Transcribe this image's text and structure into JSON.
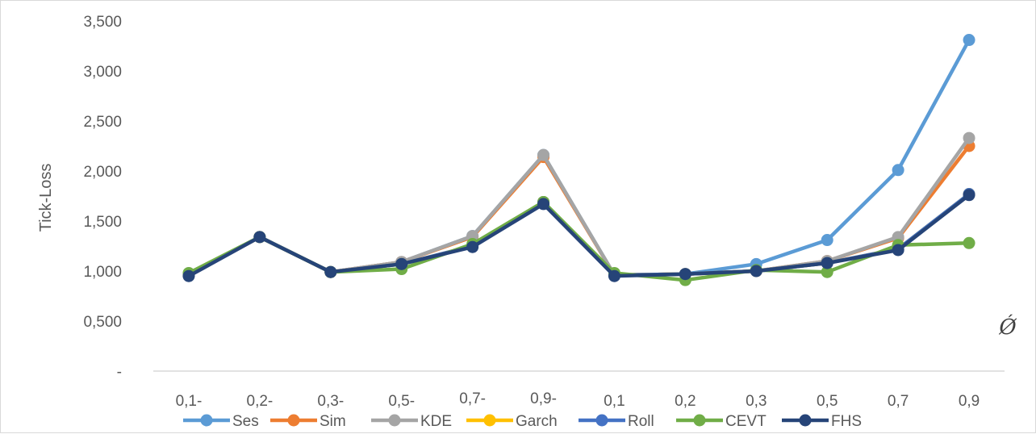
{
  "chart_data": {
    "type": "line",
    "title": "",
    "xlabel": "Ǿ",
    "ylabel": "Tick-Loss",
    "ylim": [
      0,
      3.5
    ],
    "grid": false,
    "legend_position": "bottom",
    "categories": [
      "0,1-",
      "0,2-",
      "0,3-",
      "0,5-",
      "0,7-",
      "0,9-",
      "0,1",
      "0,2",
      "0,3",
      "0,5",
      "0,7",
      "0,9"
    ],
    "y_tick_labels": [
      "-",
      "0,500",
      "1,000",
      "1,500",
      "2,000",
      "2,500",
      "3,000",
      "3,500"
    ],
    "series": [
      {
        "name": "Ses",
        "color": "#5b9bd5",
        "values": [
          0.96,
          1.34,
          0.99,
          1.09,
          1.35,
          2.16,
          0.96,
          0.97,
          1.07,
          1.31,
          2.01,
          3.31
        ]
      },
      {
        "name": "Sim",
        "color": "#ed7d31",
        "values": [
          0.96,
          1.34,
          0.99,
          1.09,
          1.34,
          2.14,
          0.96,
          0.97,
          1.0,
          1.1,
          1.33,
          2.25
        ]
      },
      {
        "name": "KDE",
        "color": "#a5a5a5",
        "values": [
          0.96,
          1.34,
          0.99,
          1.09,
          1.35,
          2.16,
          0.96,
          0.97,
          1.0,
          1.1,
          1.34,
          2.33
        ]
      },
      {
        "name": "Garch",
        "color": "#ffc000",
        "values": [
          0.96,
          1.34,
          0.99,
          1.07,
          1.25,
          1.69,
          0.96,
          0.97,
          1.0,
          1.08,
          1.22,
          1.77
        ]
      },
      {
        "name": "Roll",
        "color": "#4472c4",
        "values": [
          0.96,
          1.34,
          0.99,
          1.07,
          1.25,
          1.69,
          0.96,
          0.97,
          1.0,
          1.08,
          1.22,
          1.77
        ]
      },
      {
        "name": "CEVT",
        "color": "#70ad47",
        "values": [
          0.98,
          1.34,
          0.99,
          1.02,
          1.27,
          1.69,
          0.98,
          0.91,
          1.01,
          0.99,
          1.26,
          1.28
        ]
      },
      {
        "name": "FHS",
        "color": "#264478",
        "values": [
          0.95,
          1.34,
          0.99,
          1.07,
          1.24,
          1.67,
          0.95,
          0.97,
          1.0,
          1.08,
          1.21,
          1.76
        ]
      }
    ]
  }
}
